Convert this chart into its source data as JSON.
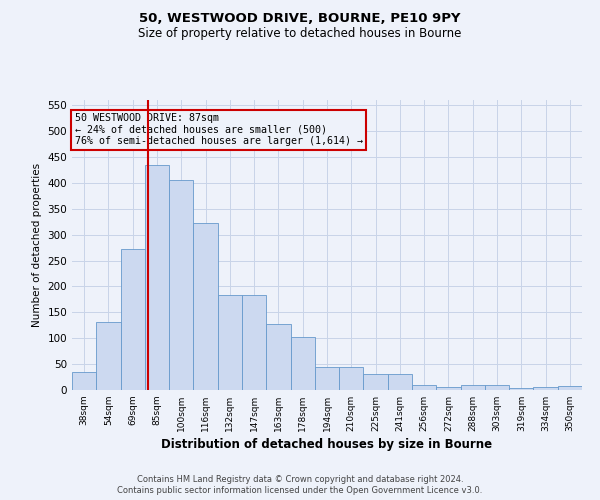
{
  "title1": "50, WESTWOOD DRIVE, BOURNE, PE10 9PY",
  "title2": "Size of property relative to detached houses in Bourne",
  "xlabel": "Distribution of detached houses by size in Bourne",
  "ylabel": "Number of detached properties",
  "categories": [
    "38sqm",
    "54sqm",
    "69sqm",
    "85sqm",
    "100sqm",
    "116sqm",
    "132sqm",
    "147sqm",
    "163sqm",
    "178sqm",
    "194sqm",
    "210sqm",
    "225sqm",
    "241sqm",
    "256sqm",
    "272sqm",
    "288sqm",
    "303sqm",
    "319sqm",
    "334sqm",
    "350sqm"
  ],
  "values": [
    35,
    132,
    272,
    435,
    405,
    322,
    184,
    184,
    127,
    103,
    45,
    45,
    30,
    30,
    9,
    5,
    9,
    9,
    3,
    5,
    7
  ],
  "bar_color": "#ccd9f0",
  "bar_edge_color": "#6699cc",
  "property_line_color": "#cc0000",
  "annotation_text": "50 WESTWOOD DRIVE: 87sqm\n← 24% of detached houses are smaller (500)\n76% of semi-detached houses are larger (1,614) →",
  "annotation_box_color": "#cc0000",
  "ylim": [
    0,
    560
  ],
  "yticks": [
    0,
    50,
    100,
    150,
    200,
    250,
    300,
    350,
    400,
    450,
    500,
    550
  ],
  "footer1": "Contains HM Land Registry data © Crown copyright and database right 2024.",
  "footer2": "Contains public sector information licensed under the Open Government Licence v3.0.",
  "bg_color": "#eef2fa",
  "grid_color": "#c8d4e8"
}
